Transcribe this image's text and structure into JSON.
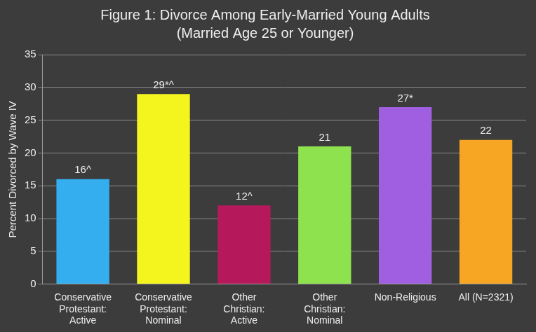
{
  "chart_data": {
    "type": "bar",
    "title": "Figure 1: Divorce Among Early-Married Young Adults",
    "subtitle": "(Married Age 25 or Younger)",
    "y_label": "Percent Divorced by Wave IV",
    "categories": [
      "Conservative Protestant: Active",
      "Conservative Protestant: Nominal",
      "Other Christian: Active",
      "Other Christian: Nominal",
      "Non-Religious",
      "All (N=2321)"
    ],
    "values": [
      16,
      29,
      12,
      21,
      27,
      22
    ],
    "value_labels": [
      "16^",
      "29*^",
      "12^",
      "21",
      "27*",
      "22"
    ],
    "colors": [
      "#35aef0",
      "#f4f41e",
      "#b5195c",
      "#8ee24e",
      "#a05fe0",
      "#f6a623"
    ],
    "ylim": [
      0,
      35
    ],
    "yticks": [
      0,
      5,
      10,
      15,
      20,
      25,
      30,
      35
    ],
    "grid": true,
    "data_labels": true
  }
}
